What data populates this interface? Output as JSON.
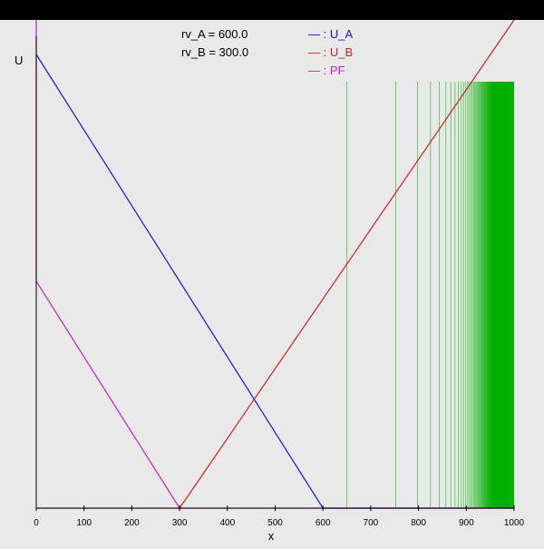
{
  "chart_data": {
    "type": "line",
    "ylabel": "U",
    "xlabel": "x",
    "xlim": [
      0,
      1000
    ],
    "ylim": [
      0,
      1000
    ],
    "x_ticks": [
      0,
      100,
      200,
      300,
      400,
      500,
      600,
      700,
      800,
      900,
      1000
    ],
    "x_tick_labels": [
      "0",
      "100",
      "200",
      "300",
      "400",
      "500",
      "600",
      "700",
      "800",
      "900",
      "1000"
    ],
    "annotations": [
      {
        "name": "rv-a",
        "text": "rv_A = 600.0"
      },
      {
        "name": "rv-b",
        "text": "rv_B = 300.0"
      }
    ],
    "legend": {
      "placement": "top",
      "entries": [
        {
          "name": "u-a",
          "label": "— : U_A",
          "color": "#1515d0"
        },
        {
          "name": "u-b",
          "label": "— : U_B",
          "color": "#d02020"
        },
        {
          "name": "pf",
          "label": "— : PF",
          "color": "#c020c0"
        }
      ]
    },
    "series": [
      {
        "key": "U_A",
        "color": "#1515d0",
        "points": [
          [
            0,
            1000
          ],
          [
            600,
            0
          ],
          [
            1000,
            0
          ]
        ]
      },
      {
        "key": "U_B",
        "color": "#d02020",
        "points": [
          [
            0,
            0
          ],
          [
            300,
            0
          ],
          [
            1000,
            1150
          ]
        ]
      },
      {
        "key": "PF",
        "color": "#c020c0",
        "points": [
          [
            0,
            1150
          ],
          [
            0,
            500
          ],
          [
            300,
            0
          ],
          [
            1000,
            0
          ]
        ]
      }
    ],
    "vertical_lines": {
      "color": "#00b000",
      "y_top": 940,
      "x_start": 650,
      "x_end": 1000,
      "count": 120
    }
  }
}
